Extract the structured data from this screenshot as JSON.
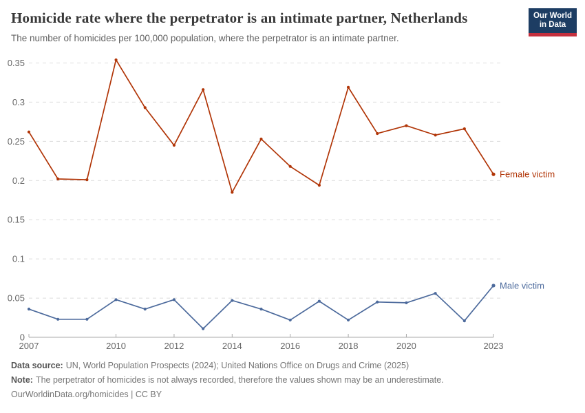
{
  "header": {
    "title": "Homicide rate where the perpetrator is an intimate partner, Netherlands",
    "subtitle": "The number of homicides per 100,000 population, where the perpetrator is an intimate partner.",
    "logo": {
      "line1": "Our World",
      "line2": "in Data",
      "bg_color": "#1d3d63",
      "accent_color": "#c5303e"
    }
  },
  "chart_data": {
    "type": "line",
    "title": "Homicide rate where the perpetrator is an intimate partner, Netherlands",
    "subtitle": "The number of homicides per 100,000 population, where the perpetrator is an intimate partner.",
    "x": [
      2007,
      2008,
      2009,
      2010,
      2011,
      2012,
      2013,
      2014,
      2015,
      2016,
      2017,
      2018,
      2019,
      2020,
      2021,
      2022,
      2023
    ],
    "series": [
      {
        "name": "Female victim",
        "color": "#b13507",
        "values": [
          0.262,
          0.202,
          0.201,
          0.354,
          0.293,
          0.245,
          0.316,
          0.185,
          0.253,
          0.218,
          0.194,
          0.319,
          0.26,
          0.27,
          0.258,
          0.266,
          0.208
        ]
      },
      {
        "name": "Male victim",
        "color": "#4c6a9c",
        "values": [
          0.036,
          0.023,
          0.023,
          0.048,
          0.036,
          0.048,
          0.011,
          0.047,
          0.036,
          0.022,
          0.046,
          0.022,
          0.045,
          0.044,
          0.056,
          0.021,
          0.066
        ]
      }
    ],
    "xlim": [
      2007,
      2023
    ],
    "ylim": [
      0,
      0.35
    ],
    "xticks": [
      2007,
      2010,
      2012,
      2014,
      2016,
      2018,
      2020,
      2023
    ],
    "yticks": [
      0,
      0.05,
      0.1,
      0.15,
      0.2,
      0.25,
      0.3,
      0.35
    ],
    "xlabel": "",
    "ylabel": "",
    "grid": "horizontal-dashed",
    "legend_position": "end-of-line-labels",
    "grid_color": "#dcdcdc",
    "axis_color": "#a8a8a8",
    "tick_label_color": "#666666"
  },
  "footer": {
    "data_source_label": "Data source:",
    "data_source_text": "UN, World Population Prospects (2024); United Nations Office on Drugs and Crime (2025)",
    "note_label": "Note:",
    "note_text": "The perpetrator of homicides is not always recorded, therefore the values shown may be an underestimate.",
    "attribution": "OurWorldinData.org/homicides | CC BY"
  }
}
